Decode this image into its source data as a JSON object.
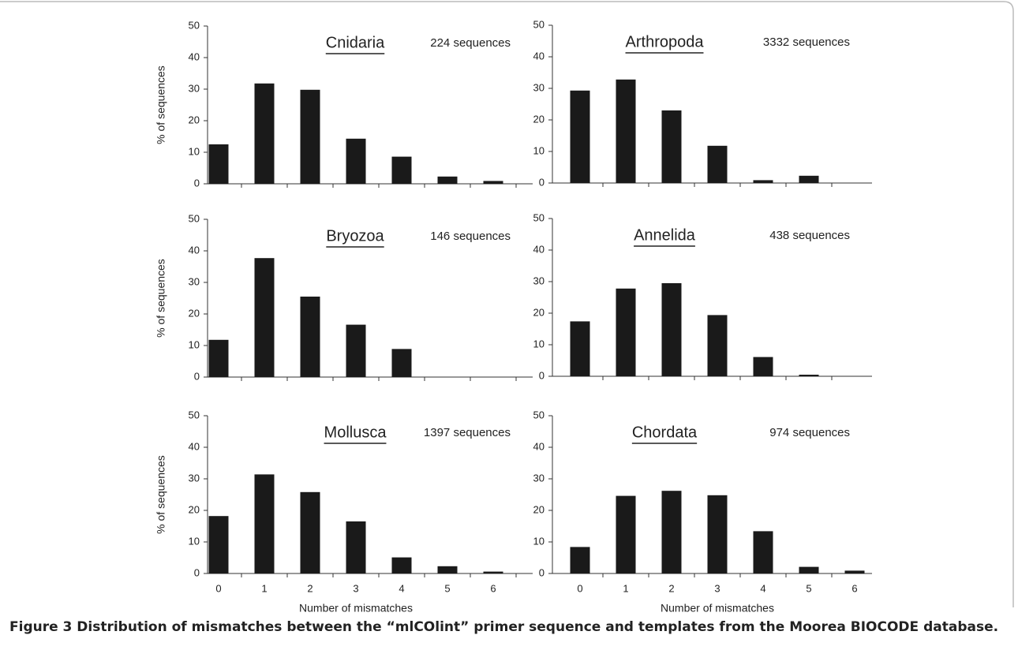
{
  "chart_data": [
    {
      "type": "bar",
      "title": "Cnidaria",
      "subtitle": "224 sequences",
      "ylabel": "% of sequences",
      "categories": [
        null,
        null,
        null,
        null,
        null,
        null,
        null
      ],
      "values": [
        12.5,
        31.8,
        29.8,
        14.3,
        8.6,
        2.3,
        0.9
      ],
      "color": "#1a1a1a",
      "ylim": [
        0,
        50
      ],
      "yticks": [
        0,
        10,
        20,
        30,
        40,
        50
      ]
    },
    {
      "type": "bar",
      "title": "Arthropoda",
      "subtitle": "3332 sequences",
      "categories": [
        null,
        null,
        null,
        null,
        null,
        null,
        null
      ],
      "values": [
        29.3,
        32.8,
        23.0,
        11.8,
        0.9,
        2.3,
        0
      ],
      "color": "#1a1a1a",
      "ylim": [
        0,
        50
      ],
      "yticks": [
        0,
        10,
        20,
        30,
        40,
        50
      ]
    },
    {
      "type": "bar",
      "title": "Bryozoa",
      "subtitle": "146 sequences",
      "ylabel": "% of sequences",
      "categories": [
        null,
        null,
        null,
        null,
        null,
        null,
        null
      ],
      "values": [
        11.8,
        37.7,
        25.5,
        16.6,
        8.9,
        0,
        0
      ],
      "color": "#1a1a1a",
      "ylim": [
        0,
        50
      ],
      "yticks": [
        0,
        10,
        20,
        30,
        40,
        50
      ]
    },
    {
      "type": "bar",
      "title": "Annelida",
      "subtitle": "438 sequences",
      "categories": [
        null,
        null,
        null,
        null,
        null,
        null,
        null
      ],
      "values": [
        17.4,
        27.8,
        29.5,
        19.4,
        6.1,
        0.5,
        0
      ],
      "color": "#1a1a1a",
      "ylim": [
        0,
        50
      ],
      "yticks": [
        0,
        10,
        20,
        30,
        40,
        50
      ]
    },
    {
      "type": "bar",
      "title": "Mollusca",
      "subtitle": "1397 sequences",
      "ylabel": "% of sequences",
      "xlabel": "Number of mismatches",
      "categories": [
        "0",
        "1",
        "2",
        "3",
        "4",
        "5",
        "6"
      ],
      "values": [
        18.2,
        31.4,
        25.8,
        16.5,
        5.1,
        2.3,
        0.6
      ],
      "color": "#1a1a1a",
      "ylim": [
        0,
        50
      ],
      "yticks": [
        0,
        10,
        20,
        30,
        40,
        50
      ]
    },
    {
      "type": "bar",
      "title": "Chordata",
      "subtitle": "974 sequences",
      "xlabel": "Number of mismatches",
      "categories": [
        "0",
        "1",
        "2",
        "3",
        "4",
        "5",
        "6"
      ],
      "values": [
        8.4,
        24.6,
        26.2,
        24.8,
        13.4,
        2.1,
        0.9
      ],
      "color": "#1a1a1a",
      "ylim": [
        0,
        50
      ],
      "yticks": [
        0,
        10,
        20,
        30,
        40,
        50
      ]
    }
  ],
  "caption": "Figure 3 Distribution of mismatches between the “mlCOlint” primer sequence and templates from the Moorea BIOCODE database."
}
